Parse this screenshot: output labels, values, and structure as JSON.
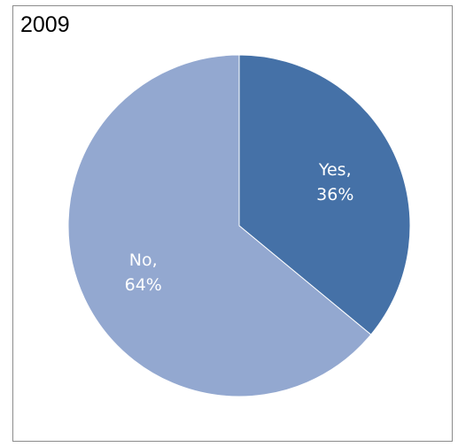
{
  "chart_data": {
    "type": "pie",
    "title": "2009",
    "slices": [
      {
        "label": "Yes,",
        "percent_label": "36%",
        "value": 36,
        "color": "#4571a7"
      },
      {
        "label": "No,",
        "percent_label": "64%",
        "value": 64,
        "color": "#93a8d0"
      }
    ],
    "legend": "none"
  }
}
